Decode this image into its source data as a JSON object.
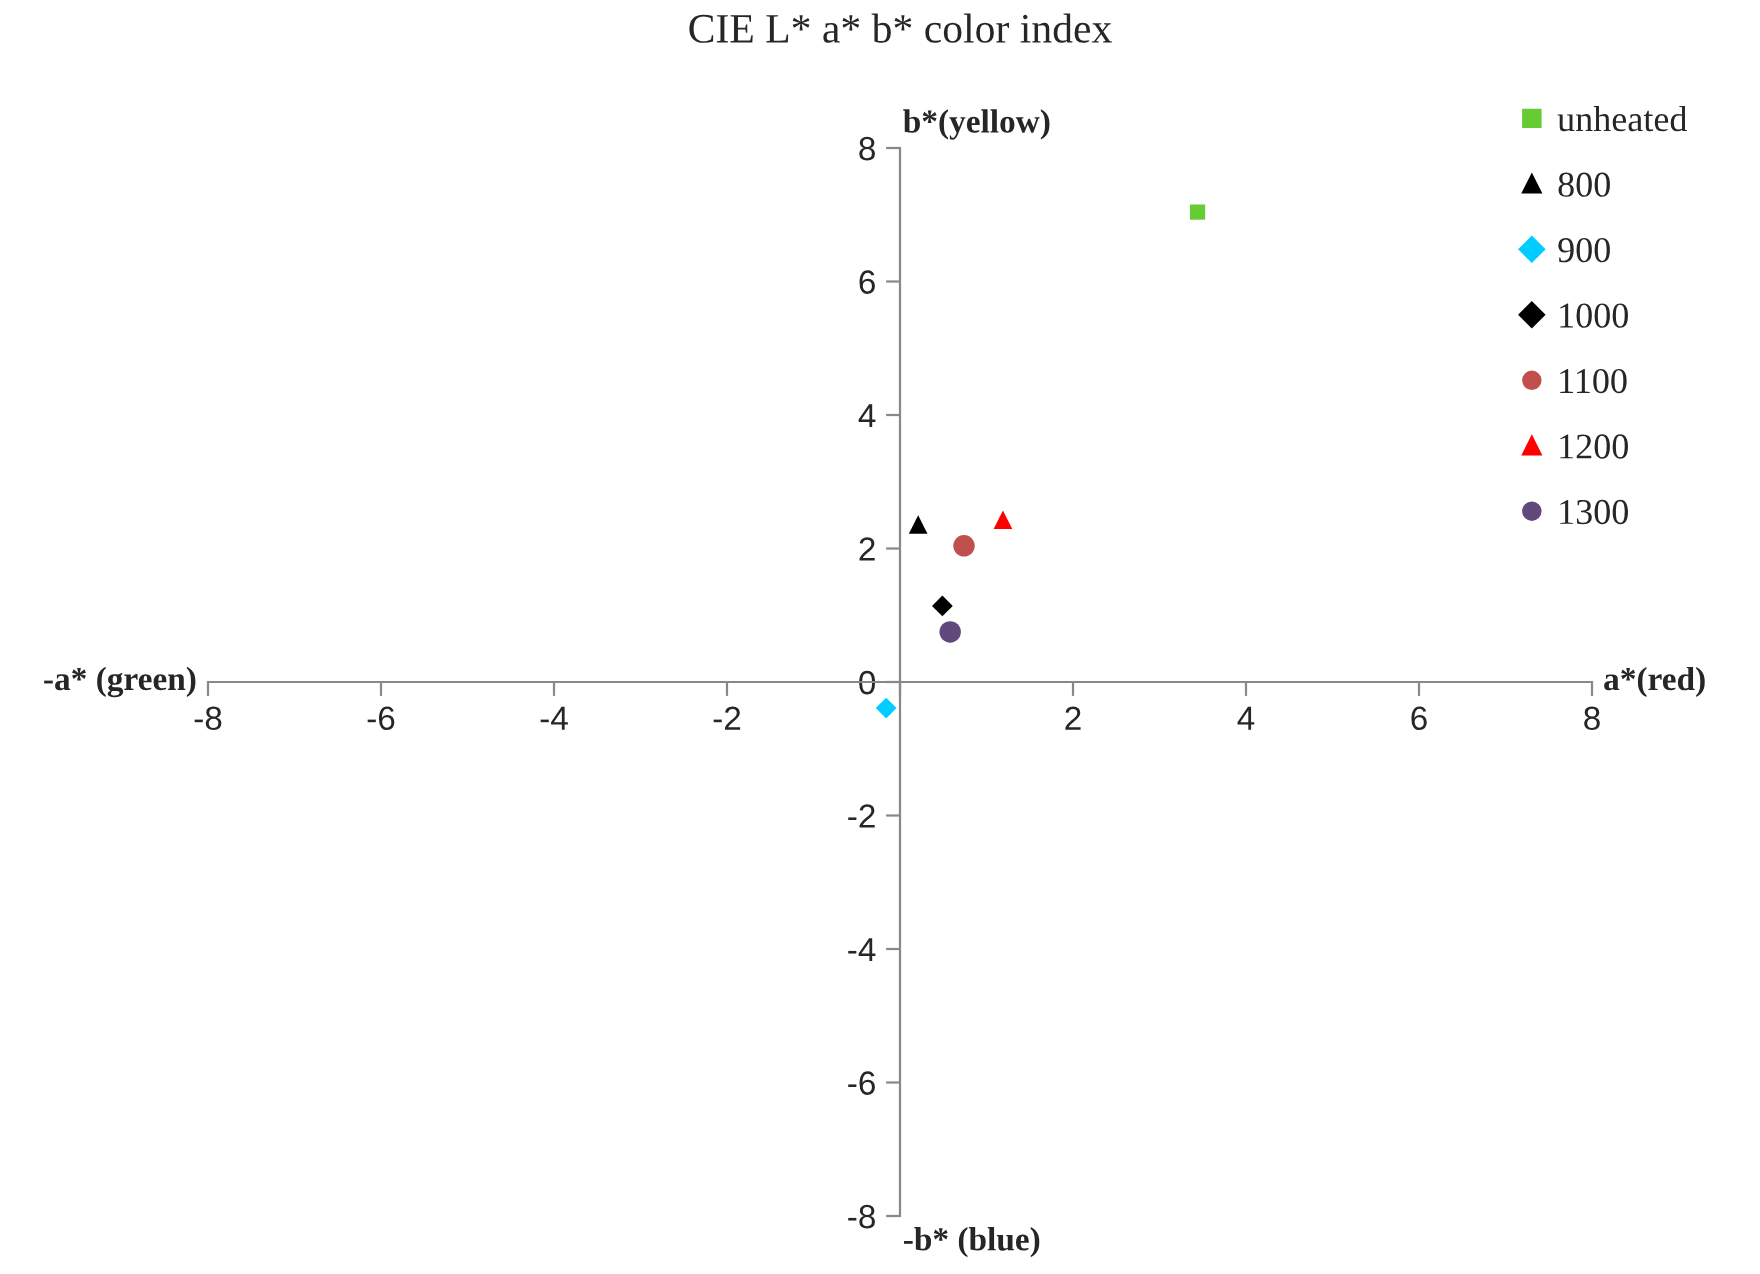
{
  "chart_data": {
    "type": "scatter",
    "title": "CIE L* a* b* color index",
    "xlabel": "a*(red)",
    "ylabel": "b*(yellow)",
    "annotations": [
      "-a* (green)",
      "-b* (blue)"
    ],
    "series": [
      {
        "name": "unheated",
        "color": "#66cc33",
        "marker": "square",
        "x": [
          3.44
        ],
        "values": [
          7.04
        ]
      },
      {
        "name": "800",
        "color": "#000000",
        "marker": "triangle",
        "x": [
          0.21
        ],
        "values": [
          2.36
        ]
      },
      {
        "name": "900",
        "color": "#00ccff",
        "marker": "diamond",
        "x": [
          -0.16
        ],
        "values": [
          -0.39
        ]
      },
      {
        "name": "1000",
        "color": "#000000",
        "marker": "diamond",
        "x": [
          0.49
        ],
        "values": [
          1.14
        ]
      },
      {
        "name": "1100",
        "color": "#c0504d",
        "marker": "circle",
        "x": [
          0.74
        ],
        "values": [
          2.04
        ]
      },
      {
        "name": "1200",
        "color": "#ff0000",
        "marker": "triangle",
        "x": [
          1.19
        ],
        "values": [
          2.43
        ]
      },
      {
        "name": "1300",
        "color": "#604a7b",
        "marker": "circle",
        "x": [
          0.58
        ],
        "values": [
          0.75
        ]
      }
    ],
    "xlim": [
      -8,
      8
    ],
    "ylim": [
      -8,
      8
    ],
    "xticks": [
      -8,
      -6,
      -4,
      -2,
      {
        "value": 0,
        "label": null
      },
      2,
      4,
      6,
      8
    ],
    "yticks": [
      -8,
      -6,
      -4,
      -2,
      0,
      2,
      4,
      6,
      8
    ],
    "grid": false,
    "legend": "top right"
  }
}
